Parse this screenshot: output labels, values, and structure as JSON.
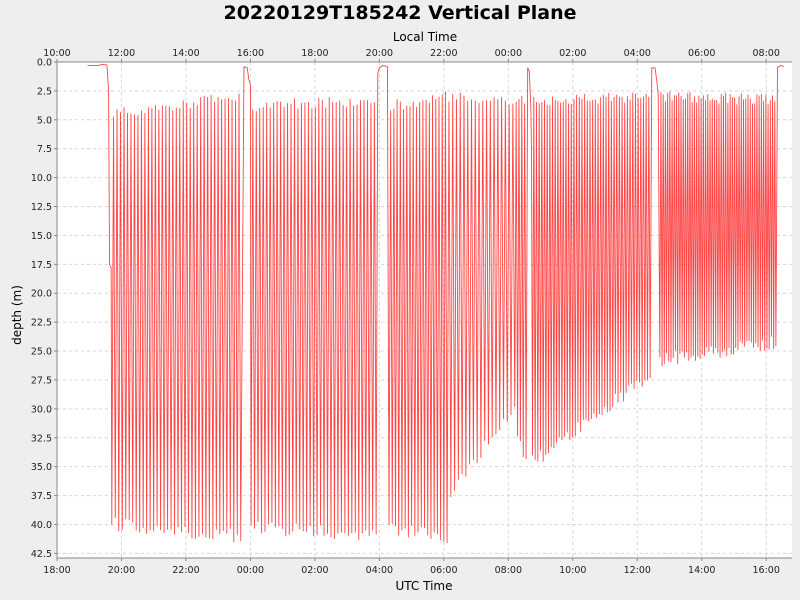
{
  "chart_data": {
    "type": "line",
    "title": "20220129T185242 Vertical Plane",
    "xlabel": "UTC Time",
    "x2label": "Local Time",
    "ylabel": "depth (m)",
    "x_unit": "hours since 18:00 UTC",
    "xlim": [
      0,
      22.8
    ],
    "ylim": [
      42.9,
      0
    ],
    "y_inverted": true,
    "grid": true,
    "line_color": "#ff4444",
    "x_ticks": [
      {
        "x": 0,
        "label": "18:00"
      },
      {
        "x": 2,
        "label": "20:00"
      },
      {
        "x": 4,
        "label": "22:00"
      },
      {
        "x": 6,
        "label": "00:00"
      },
      {
        "x": 8,
        "label": "02:00"
      },
      {
        "x": 10,
        "label": "04:00"
      },
      {
        "x": 12,
        "label": "06:00"
      },
      {
        "x": 14,
        "label": "08:00"
      },
      {
        "x": 16,
        "label": "10:00"
      },
      {
        "x": 18,
        "label": "12:00"
      },
      {
        "x": 20,
        "label": "14:00"
      },
      {
        "x": 22,
        "label": "16:00"
      }
    ],
    "x2_ticks": [
      {
        "x": 0,
        "label": "10:00"
      },
      {
        "x": 2,
        "label": "12:00"
      },
      {
        "x": 4,
        "label": "14:00"
      },
      {
        "x": 6,
        "label": "16:00"
      },
      {
        "x": 8,
        "label": "18:00"
      },
      {
        "x": 10,
        "label": "20:00"
      },
      {
        "x": 12,
        "label": "22:00"
      },
      {
        "x": 14,
        "label": "00:00"
      },
      {
        "x": 16,
        "label": "02:00"
      },
      {
        "x": 18,
        "label": "04:00"
      },
      {
        "x": 20,
        "label": "06:00"
      },
      {
        "x": 22,
        "label": "08:00"
      }
    ],
    "y_ticks": [
      {
        "y": 0,
        "label": "0.0"
      },
      {
        "y": 2.5,
        "label": "2.5"
      },
      {
        "y": 5,
        "label": "5.0"
      },
      {
        "y": 7.5,
        "label": "7.5"
      },
      {
        "y": 10,
        "label": "10.0"
      },
      {
        "y": 12.5,
        "label": "12.5"
      },
      {
        "y": 15,
        "label": "15.0"
      },
      {
        "y": 17.5,
        "label": "17.5"
      },
      {
        "y": 20,
        "label": "20.0"
      },
      {
        "y": 22.5,
        "label": "22.5"
      },
      {
        "y": 25,
        "label": "25.0"
      },
      {
        "y": 27.5,
        "label": "27.5"
      },
      {
        "y": 30,
        "label": "30.0"
      },
      {
        "y": 32.5,
        "label": "32.5"
      },
      {
        "y": 35,
        "label": "35.0"
      },
      {
        "y": 37.5,
        "label": "37.5"
      },
      {
        "y": 40,
        "label": "40.0"
      },
      {
        "y": 42.5,
        "label": "42.5"
      }
    ],
    "series": [
      {
        "name": "depth",
        "segments": [
          {
            "type": "line",
            "points": [
              [
                0.95,
                0.3
              ],
              [
                1.3,
                0.3
              ],
              [
                1.4,
                0.2
              ],
              [
                1.55,
                0.25
              ],
              [
                1.6,
                2.5
              ],
              [
                1.63,
                17.5
              ],
              [
                1.68,
                17.8
              ],
              [
                1.7,
                40.0
              ]
            ]
          },
          {
            "type": "yoyo",
            "start": 1.7,
            "end": 5.7,
            "n": 37,
            "shallow": [
              4.5,
              3.0
            ],
            "deep": [
              40.0,
              41.0
            ]
          },
          {
            "type": "line",
            "points": [
              [
                5.7,
                40.5
              ],
              [
                5.8,
                0.4
              ],
              [
                5.9,
                0.5
              ],
              [
                5.95,
                1.5
              ],
              [
                6.0,
                2.0
              ],
              [
                6.02,
                40.0
              ]
            ]
          },
          {
            "type": "yoyo",
            "start": 6.02,
            "end": 9.9,
            "n": 36,
            "shallow": [
              3.8,
              3.3
            ],
            "deep": [
              40.2,
              41.0
            ]
          },
          {
            "type": "line",
            "points": [
              [
                9.9,
                40.0
              ],
              [
                9.95,
                1.0
              ],
              [
                10.0,
                0.5
              ],
              [
                10.1,
                0.3
              ],
              [
                10.25,
                0.4
              ],
              [
                10.3,
                40.0
              ]
            ]
          },
          {
            "type": "yoyo",
            "start": 10.3,
            "end": 12.1,
            "n": 18,
            "shallow": [
              3.8,
              3.0
            ],
            "deep": [
              40.3,
              41.2
            ]
          },
          {
            "type": "yoyo",
            "start": 12.1,
            "end": 14.2,
            "n": 18,
            "shallow": [
              3.0,
              3.5
            ],
            "deep": [
              37.0,
              30.0
            ]
          },
          {
            "type": "yoyo",
            "start": 14.2,
            "end": 14.55,
            "n": 4,
            "shallow": [
              3.0,
              3.2
            ],
            "deep": [
              32.0,
              34.3
            ]
          },
          {
            "type": "line",
            "points": [
              [
                14.55,
                34.3
              ],
              [
                14.6,
                0.5
              ],
              [
                14.65,
                0.8
              ],
              [
                14.7,
                4.0
              ],
              [
                14.72,
                8.0
              ],
              [
                14.75,
                34.0
              ]
            ]
          },
          {
            "type": "yoyo",
            "start": 14.75,
            "end": 18.4,
            "n": 44,
            "shallow": [
              3.5,
              3.0
            ],
            "deep": [
              34.5,
              27.0
            ]
          },
          {
            "type": "line",
            "points": [
              [
                18.4,
                26.5
              ],
              [
                18.45,
                0.5
              ],
              [
                18.55,
                0.5
              ],
              [
                18.6,
                1.5
              ],
              [
                18.65,
                2.8
              ],
              [
                18.7,
                25.5
              ]
            ]
          },
          {
            "type": "yoyo",
            "start": 18.7,
            "end": 22.3,
            "n": 52,
            "shallow": [
              3.0,
              3.3
            ],
            "deep": [
              25.7,
              24.2
            ]
          },
          {
            "type": "line",
            "points": [
              [
                22.3,
                24.5
              ],
              [
                22.35,
                0.5
              ],
              [
                22.45,
                0.3
              ],
              [
                22.55,
                0.4
              ]
            ]
          }
        ]
      }
    ]
  }
}
